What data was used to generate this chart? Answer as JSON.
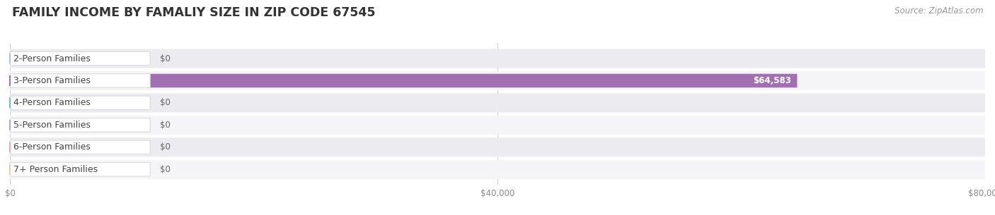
{
  "title": "FAMILY INCOME BY FAMALIY SIZE IN ZIP CODE 67545",
  "source": "Source: ZipAtlas.com",
  "categories": [
    "2-Person Families",
    "3-Person Families",
    "4-Person Families",
    "5-Person Families",
    "6-Person Families",
    "7+ Person Families"
  ],
  "values": [
    0,
    64583,
    0,
    0,
    0,
    0
  ],
  "bar_colors": [
    "#a8c4e0",
    "#a070b0",
    "#68c4b0",
    "#a8a8d8",
    "#f0a0b8",
    "#f0cca0"
  ],
  "row_bg_even": "#ebebf0",
  "row_bg_odd": "#f5f5f8",
  "xlim_max": 80000,
  "xticks": [
    0,
    40000,
    80000
  ],
  "xtick_labels": [
    "$0",
    "$40,000",
    "$80,000"
  ],
  "title_fontsize": 12.5,
  "source_fontsize": 8.5,
  "bar_label_fontsize": 8.5,
  "category_fontsize": 9,
  "background_color": "#ffffff",
  "label_value_0": "$0",
  "label_value_1": "$64,583"
}
